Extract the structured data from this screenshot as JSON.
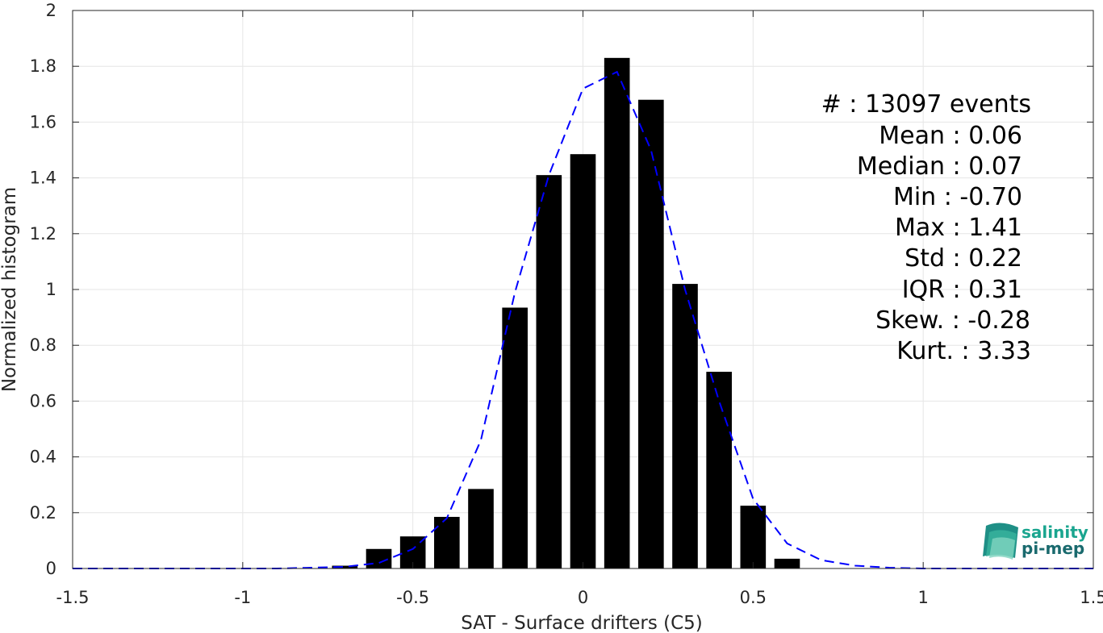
{
  "chart_data": {
    "type": "bar",
    "xlabel": "SAT - Surface drifters (C5)",
    "ylabel": "Normalized histogram",
    "xlim": [
      -1.5,
      1.5
    ],
    "ylim": [
      0,
      2
    ],
    "xticks": [
      -1.5,
      -1,
      -0.5,
      0,
      0.5,
      1,
      1.5
    ],
    "xtick_labels": [
      "-1.5",
      "-1",
      "-0.5",
      "0",
      "0.5",
      "1",
      "1.5"
    ],
    "yticks": [
      0,
      0.2,
      0.4,
      0.6,
      0.8,
      1,
      1.2,
      1.4,
      1.6,
      1.8,
      2
    ],
    "ytick_labels": [
      "0",
      "0.2",
      "0.4",
      "0.6",
      "0.8",
      "1",
      "1.2",
      "1.4",
      "1.6",
      "1.8",
      "2"
    ],
    "grid": true,
    "bar_width": 0.075,
    "bar_color": "#000000",
    "bars": {
      "x": [
        -0.7,
        -0.6,
        -0.5,
        -0.4,
        -0.3,
        -0.2,
        -0.1,
        0.0,
        0.1,
        0.2,
        0.3,
        0.4,
        0.5,
        0.6
      ],
      "values": [
        0.01,
        0.07,
        0.115,
        0.185,
        0.285,
        0.935,
        1.41,
        1.485,
        1.83,
        1.68,
        1.02,
        0.705,
        0.225,
        0.035
      ]
    },
    "fit_curve": {
      "style": "dashed",
      "color": "#0000ff",
      "x": [
        -1.5,
        -1.4,
        -1.3,
        -1.2,
        -1.1,
        -1.0,
        -0.9,
        -0.8,
        -0.7,
        -0.6,
        -0.5,
        -0.4,
        -0.3,
        -0.2,
        -0.1,
        0.0,
        0.1,
        0.2,
        0.3,
        0.4,
        0.5,
        0.6,
        0.7,
        0.8,
        0.9,
        1.0,
        1.1,
        1.2,
        1.3,
        1.4,
        1.5
      ],
      "y": [
        0,
        0,
        0,
        0,
        0,
        0,
        0,
        0.003,
        0.006,
        0.02,
        0.07,
        0.18,
        0.46,
        0.99,
        1.41,
        1.72,
        1.78,
        1.5,
        1.0,
        0.6,
        0.25,
        0.09,
        0.03,
        0.01,
        0.003,
        0,
        0,
        0,
        0,
        0,
        0
      ]
    },
    "stats": [
      {
        "label": "#  : 13097 events"
      },
      {
        "label": "Mean : 0.06"
      },
      {
        "label": "Median : 0.07"
      },
      {
        "label": "Min : -0.70"
      },
      {
        "label": "Max : 1.41"
      },
      {
        "label": "Std : 0.22"
      },
      {
        "label": "IQR : 0.31"
      },
      {
        "label": "Skew. : -0.28"
      },
      {
        "label": "Kurt. : 3.33"
      }
    ]
  },
  "logo": {
    "line1": "salinity",
    "line2": "pi-mep",
    "color1": "#1aa58f",
    "color2": "#1a6a6e"
  }
}
